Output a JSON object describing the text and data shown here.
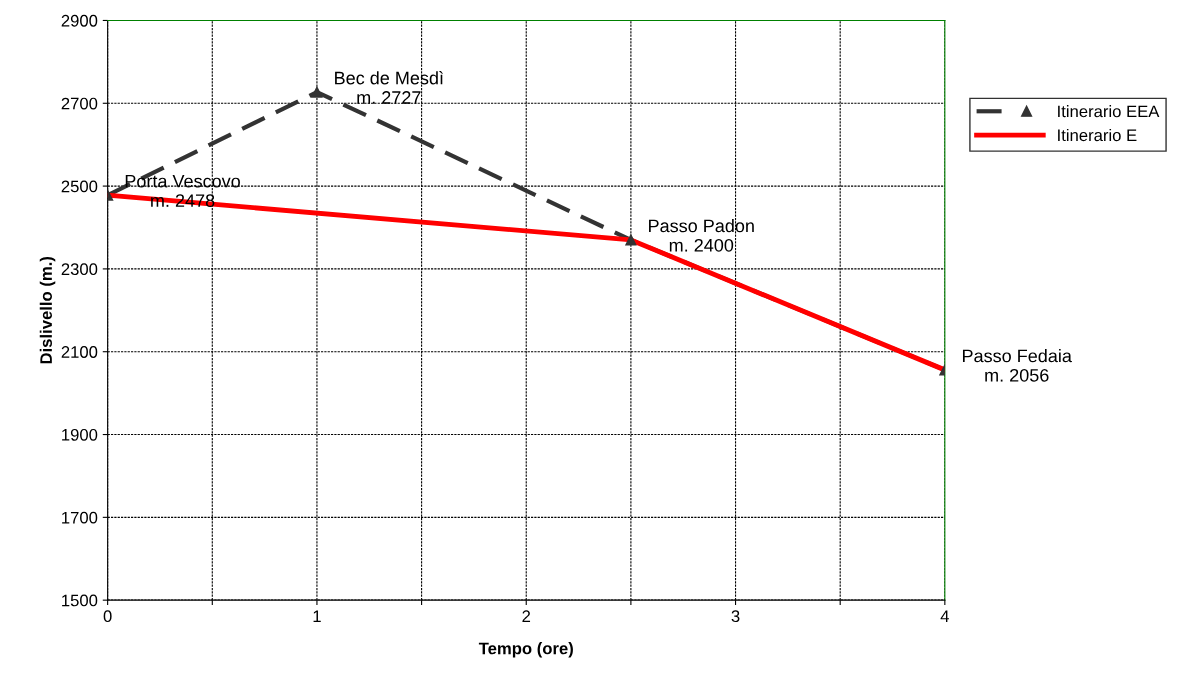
{
  "chart_data": {
    "type": "line",
    "xlabel": "Tempo (ore)",
    "ylabel": "Dislivello (m.)",
    "xlim": [
      0,
      4
    ],
    "xticks": [
      0,
      {
        "value": 0.5,
        "label": null
      },
      1,
      {
        "value": 1.5,
        "label": null
      },
      2,
      {
        "value": 2.5,
        "label": null
      },
      3,
      {
        "value": 3.5,
        "label": null
      },
      4
    ],
    "ylim": [
      1500,
      2900
    ],
    "yticks": [
      1500,
      1700,
      1900,
      2100,
      2300,
      2500,
      2700,
      2900
    ],
    "grid": true,
    "legend": "right",
    "series": [
      {
        "name": "Itinerario EEA",
        "color": "#333333",
        "x": [
          0,
          1,
          2.5,
          4
        ],
        "values": [
          2478,
          2727,
          2370,
          2056
        ],
        "marker": "triangle",
        "line_style": "dashed"
      },
      {
        "name": "Itinerario E",
        "color": "#ff0000",
        "x": [
          0,
          2.5,
          4
        ],
        "values": [
          2478,
          2370,
          2056
        ],
        "marker": "none",
        "line_style": "solid"
      }
    ],
    "annotations": [
      {
        "text": "Porta Vescovo\nm. 2478",
        "x": 0,
        "y": 2478
      },
      {
        "text": "Bec de Mesdì\nm. 2727",
        "x": 1,
        "y": 2727
      },
      {
        "text": "Passo Padon\nm. 2400",
        "x": 2.5,
        "y": 2370
      },
      {
        "text": "Passo Fedaia\nm. 2056",
        "x": 4,
        "y": 2056
      }
    ]
  }
}
